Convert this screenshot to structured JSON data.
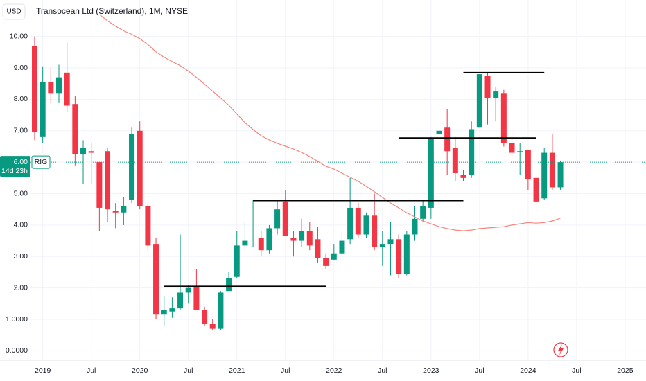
{
  "chart_data": {
    "type": "candlestick",
    "title": "Transocean Ltd (Switzerland), 1M, NYSE",
    "currency": "USD",
    "x": [
      "2018-12",
      "2019-01",
      "2019-02",
      "2019-03",
      "2019-04",
      "2019-05",
      "2019-06",
      "2019-07",
      "2019-08",
      "2019-09",
      "2019-10",
      "2019-11",
      "2019-12",
      "2020-01",
      "2020-02",
      "2020-03",
      "2020-04",
      "2020-05",
      "2020-06",
      "2020-07",
      "2020-08",
      "2020-09",
      "2020-10",
      "2020-11",
      "2020-12",
      "2021-01",
      "2021-02",
      "2021-03",
      "2021-04",
      "2021-05",
      "2021-06",
      "2021-07",
      "2021-08",
      "2021-09",
      "2021-10",
      "2021-11",
      "2021-12",
      "2022-01",
      "2022-02",
      "2022-03",
      "2022-04",
      "2022-05",
      "2022-06",
      "2022-07",
      "2022-08",
      "2022-09",
      "2022-10",
      "2022-11",
      "2022-12",
      "2023-01",
      "2023-02",
      "2023-03",
      "2023-04",
      "2023-05",
      "2023-06",
      "2023-07",
      "2023-08",
      "2023-09",
      "2023-10",
      "2023-11",
      "2023-12",
      "2024-01",
      "2024-02",
      "2024-03",
      "2024-04",
      "2024-05"
    ],
    "ohlc": {
      "open": [
        9.7,
        6.8,
        8.55,
        8.2,
        8.85,
        7.85,
        6.25,
        6.35,
        6.0,
        6.35,
        4.45,
        4.4,
        4.8,
        7.0,
        4.6,
        3.4,
        1.15,
        1.25,
        1.35,
        1.85,
        2.05,
        1.3,
        0.85,
        0.7,
        1.9,
        2.35,
        3.35,
        3.6,
        3.6,
        3.2,
        3.9,
        4.75,
        3.6,
        3.5,
        3.8,
        3.55,
        2.95,
        2.9,
        3.1,
        3.55,
        4.55,
        3.7,
        4.3,
        3.3,
        3.4,
        3.55,
        2.45,
        3.7,
        4.2,
        4.55,
        6.9,
        7.1,
        6.45,
        5.6,
        5.6,
        7.1,
        8.75,
        8.05,
        8.2,
        6.6,
        6.35,
        6.4,
        5.5,
        4.85,
        6.3,
        5.2
      ],
      "high": [
        10.0,
        9.05,
        9.0,
        9.1,
        9.8,
        8.1,
        6.7,
        6.6,
        6.0,
        6.45,
        4.7,
        4.9,
        7.1,
        7.3,
        4.7,
        3.6,
        1.75,
        1.7,
        3.7,
        2.1,
        2.6,
        1.4,
        1.0,
        1.9,
        2.5,
        3.8,
        4.1,
        4.8,
        3.8,
        4.0,
        4.8,
        5.1,
        3.8,
        4.2,
        4.1,
        3.95,
        3.1,
        3.4,
        3.8,
        5.5,
        4.7,
        4.4,
        5.0,
        3.8,
        4.1,
        3.7,
        3.8,
        4.6,
        4.8,
        6.8,
        7.6,
        7.7,
        6.8,
        5.75,
        7.3,
        8.8,
        8.85,
        8.4,
        8.3,
        7.0,
        6.6,
        6.4,
        5.6,
        6.45,
        6.9,
        6.05
      ],
      "low": [
        6.7,
        6.6,
        7.9,
        7.9,
        7.6,
        5.9,
        5.3,
        5.3,
        3.8,
        4.1,
        3.9,
        4.0,
        4.7,
        4.5,
        3.2,
        1.0,
        0.8,
        1.05,
        1.3,
        1.5,
        1.3,
        0.8,
        0.65,
        0.65,
        1.9,
        2.3,
        3.2,
        3.3,
        3.0,
        3.1,
        3.7,
        3.7,
        3.0,
        3.3,
        3.2,
        2.8,
        2.6,
        2.9,
        3.0,
        3.4,
        3.6,
        3.6,
        3.2,
        2.7,
        2.4,
        2.3,
        2.4,
        3.5,
        4.1,
        4.2,
        6.5,
        5.6,
        5.4,
        5.4,
        5.5,
        7.1,
        7.2,
        7.3,
        6.5,
        6.0,
        5.6,
        5.1,
        4.5,
        4.8,
        5.1,
        5.1
      ],
      "close": [
        6.95,
        8.55,
        8.2,
        8.7,
        7.8,
        6.25,
        6.45,
        6.3,
        4.55,
        4.5,
        4.4,
        4.6,
        6.9,
        4.6,
        3.35,
        1.15,
        1.3,
        1.35,
        1.85,
        2.0,
        1.3,
        0.85,
        0.7,
        1.85,
        2.3,
        3.35,
        3.5,
        3.6,
        3.2,
        3.9,
        4.5,
        3.65,
        3.5,
        3.8,
        3.35,
        2.95,
        2.7,
        3.1,
        3.5,
        4.55,
        3.7,
        4.3,
        3.3,
        3.4,
        3.55,
        2.45,
        3.7,
        4.2,
        4.6,
        6.75,
        7.0,
        6.35,
        5.65,
        5.5,
        7.05,
        8.8,
        8.05,
        8.25,
        6.6,
        6.3,
        6.35,
        5.45,
        4.75,
        6.3,
        5.2,
        6.0
      ]
    },
    "up_color": "#089981",
    "down_color": "#f23645",
    "moving_average": {
      "color": "#f7867c",
      "values": [
        null,
        null,
        null,
        null,
        null,
        null,
        null,
        null,
        10.7,
        10.5,
        10.33,
        10.18,
        10.07,
        9.93,
        9.74,
        9.51,
        9.34,
        9.2,
        9.07,
        8.9,
        8.7,
        8.48,
        8.26,
        8.04,
        7.81,
        7.53,
        7.26,
        7.04,
        6.84,
        6.71,
        6.6,
        6.51,
        6.42,
        6.31,
        6.18,
        6.03,
        5.87,
        5.78,
        5.65,
        5.52,
        5.39,
        5.23,
        5.06,
        4.88,
        4.7,
        4.55,
        4.39,
        4.26,
        4.13,
        4.04,
        3.95,
        3.89,
        3.84,
        3.82,
        3.84,
        3.89,
        3.91,
        3.93,
        3.95,
        4.0,
        4.04,
        4.08,
        4.06,
        4.08,
        4.13,
        4.22
      ]
    },
    "levels": [
      {
        "value": 2.05,
        "from": "2020-04",
        "to": "2021-12"
      },
      {
        "value": 4.78,
        "from": "2021-03",
        "to": "2023-05"
      },
      {
        "value": 6.77,
        "from": "2022-09",
        "to": "2024-02"
      },
      {
        "value": 8.85,
        "from": "2023-05",
        "to": "2024-03"
      }
    ],
    "last_price": {
      "symbol": "RIG",
      "value": 6,
      "label": "6.00",
      "countdown": "14d 23h"
    },
    "ylim": [
      -0.3,
      11.05
    ],
    "yticks": [
      {
        "value": 0,
        "label": "0.0000"
      },
      {
        "value": 1,
        "label": "1.0000"
      },
      {
        "value": 2,
        "label": "2.00"
      },
      {
        "value": 3,
        "label": "3.00"
      },
      {
        "value": 4,
        "label": "4.00"
      },
      {
        "value": 5,
        "label": "5.00"
      },
      {
        "value": 6,
        "label": "6.00"
      },
      {
        "value": 7,
        "label": "7.00"
      },
      {
        "value": 8,
        "label": "8.00"
      },
      {
        "value": 9,
        "label": "9.00"
      },
      {
        "value": 10,
        "label": "10.00"
      }
    ],
    "xticks": [
      {
        "value": "2019-01",
        "label": "2019"
      },
      {
        "value": "2019-07",
        "label": "Jul"
      },
      {
        "value": "2020-01",
        "label": "2020"
      },
      {
        "value": "2020-07",
        "label": "Jul"
      },
      {
        "value": "2021-01",
        "label": "2021"
      },
      {
        "value": "2021-07",
        "label": "Jul"
      },
      {
        "value": "2022-01",
        "label": "2022"
      },
      {
        "value": "2022-07",
        "label": "Jul"
      },
      {
        "value": "2023-01",
        "label": "2023"
      },
      {
        "value": "2023-07",
        "label": "Jul"
      },
      {
        "value": "2024-01",
        "label": "2024"
      },
      {
        "value": "2024-07",
        "label": "Jul"
      },
      {
        "value": "2025-01",
        "label": "2025"
      }
    ],
    "grid": true
  }
}
